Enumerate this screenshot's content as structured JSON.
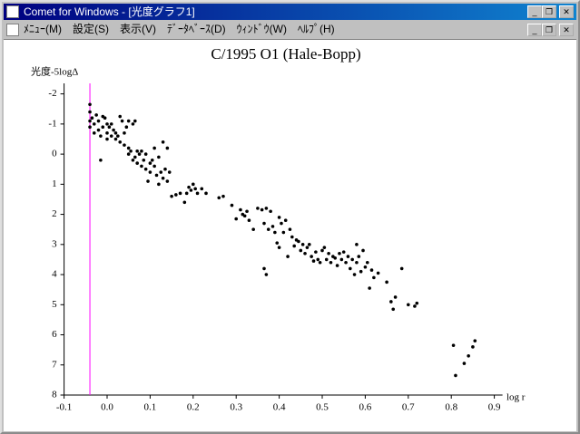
{
  "window": {
    "title": "Comet for Windows - [光度グラフ1]",
    "menu": [
      "ﾒﾆｭｰ(M)",
      "設定(S)",
      "表示(V)",
      "ﾃﾞｰﾀﾍﾞｰｽ(D)",
      "ｳｨﾝﾄﾞｳ(W)",
      "ﾍﾙﾌﾟ(H)"
    ]
  },
  "chart_data": {
    "type": "scatter",
    "title": "C/1995 O1 (Hale-Bopp)",
    "y_label": "光度-5logΔ",
    "x_label": "log r",
    "color": "#000000",
    "xlim": [
      -0.1,
      0.9
    ],
    "ylim": [
      8,
      -2.35
    ],
    "xticks": [
      -0.1,
      {
        "value": 0,
        "label": "0.0"
      },
      0.1,
      0.2,
      0.3,
      0.4,
      0.5,
      0.6,
      0.7,
      0.8,
      0.9
    ],
    "yticks": [
      -2,
      -1,
      0,
      1,
      2,
      3,
      4,
      5,
      6,
      7,
      8
    ],
    "reference_line": {
      "x": -0.04,
      "color": "#ff00ff"
    },
    "x": [
      -0.04,
      -0.04,
      -0.04,
      -0.04,
      -0.035,
      -0.03,
      -0.03,
      -0.025,
      -0.02,
      -0.02,
      -0.015,
      -0.01,
      -0.01,
      -0.005,
      0.0,
      0.0,
      0.0,
      -0.015,
      0.005,
      0.01,
      0.01,
      0.015,
      0.02,
      0.02,
      0.025,
      0.03,
      0.03,
      0.035,
      0.04,
      0.04,
      0.045,
      0.05,
      0.05,
      0.05,
      0.055,
      0.06,
      0.06,
      0.065,
      0.065,
      0.07,
      0.07,
      0.075,
      0.08,
      0.08,
      0.085,
      0.09,
      0.09,
      0.095,
      0.1,
      0.1,
      0.105,
      0.11,
      0.11,
      0.115,
      0.12,
      0.12,
      0.125,
      0.13,
      0.13,
      0.135,
      0.14,
      0.14,
      0.145,
      0.15,
      0.16,
      0.17,
      0.18,
      0.185,
      0.19,
      0.195,
      0.2,
      0.205,
      0.21,
      0.22,
      0.23,
      0.26,
      0.27,
      0.29,
      0.3,
      0.31,
      0.315,
      0.32,
      0.325,
      0.33,
      0.34,
      0.35,
      0.36,
      0.365,
      0.37,
      0.375,
      0.38,
      0.385,
      0.39,
      0.395,
      0.4,
      0.4,
      0.405,
      0.41,
      0.415,
      0.42,
      0.425,
      0.43,
      0.435,
      0.44,
      0.445,
      0.45,
      0.455,
      0.46,
      0.465,
      0.47,
      0.475,
      0.48,
      0.485,
      0.49,
      0.495,
      0.5,
      0.505,
      0.51,
      0.515,
      0.52,
      0.525,
      0.53,
      0.535,
      0.54,
      0.545,
      0.55,
      0.555,
      0.56,
      0.565,
      0.57,
      0.575,
      0.58,
      0.58,
      0.585,
      0.59,
      0.595,
      0.6,
      0.605,
      0.61,
      0.615,
      0.62,
      0.63,
      0.65,
      0.66,
      0.665,
      0.67,
      0.685,
      0.7,
      0.715,
      0.72,
      0.805,
      0.81,
      0.83,
      0.84,
      0.85,
      0.855,
      0.37,
      0.365
    ],
    "values": [
      -1.65,
      -1.4,
      -1.1,
      -0.9,
      -1.2,
      -1.0,
      -0.7,
      -1.3,
      -1.1,
      -0.8,
      -0.6,
      -1.25,
      -0.9,
      -1.2,
      -1.0,
      -0.7,
      -0.5,
      0.2,
      -0.9,
      -1.0,
      -0.6,
      -0.8,
      -0.7,
      -0.5,
      -0.6,
      -1.25,
      -0.4,
      -1.1,
      -0.3,
      -0.7,
      -0.9,
      -1.1,
      -0.2,
      0.0,
      -0.1,
      -1.0,
      0.2,
      -1.1,
      0.1,
      -0.1,
      0.3,
      0.0,
      0.4,
      -0.1,
      0.2,
      0.5,
      0.0,
      0.9,
      0.3,
      0.6,
      0.2,
      -0.2,
      0.4,
      0.7,
      0.1,
      1.0,
      0.6,
      -0.4,
      0.8,
      0.5,
      0.9,
      -0.2,
      0.6,
      1.4,
      1.35,
      1.3,
      1.6,
      1.3,
      1.1,
      1.2,
      1.0,
      1.15,
      1.3,
      1.15,
      1.3,
      1.45,
      1.4,
      1.7,
      2.15,
      1.85,
      2.0,
      2.05,
      1.9,
      2.2,
      2.5,
      1.8,
      1.85,
      2.3,
      1.8,
      2.5,
      1.9,
      2.4,
      2.6,
      2.95,
      2.1,
      3.1,
      2.3,
      2.6,
      2.2,
      3.4,
      2.5,
      2.75,
      3.05,
      2.85,
      2.9,
      3.2,
      3.0,
      3.3,
      3.1,
      3.0,
      3.4,
      3.55,
      3.25,
      3.5,
      3.6,
      3.2,
      3.1,
      3.5,
      3.3,
      3.6,
      3.4,
      3.45,
      3.7,
      3.3,
      3.5,
      3.25,
      3.6,
      3.4,
      3.8,
      3.5,
      4.0,
      3.0,
      3.6,
      3.4,
      3.9,
      3.2,
      3.75,
      3.6,
      4.45,
      3.85,
      4.1,
      3.95,
      4.25,
      4.9,
      5.15,
      4.75,
      3.8,
      5.0,
      5.05,
      4.95,
      6.35,
      7.35,
      6.95,
      6.7,
      6.4,
      6.2,
      4.0,
      3.8
    ]
  }
}
